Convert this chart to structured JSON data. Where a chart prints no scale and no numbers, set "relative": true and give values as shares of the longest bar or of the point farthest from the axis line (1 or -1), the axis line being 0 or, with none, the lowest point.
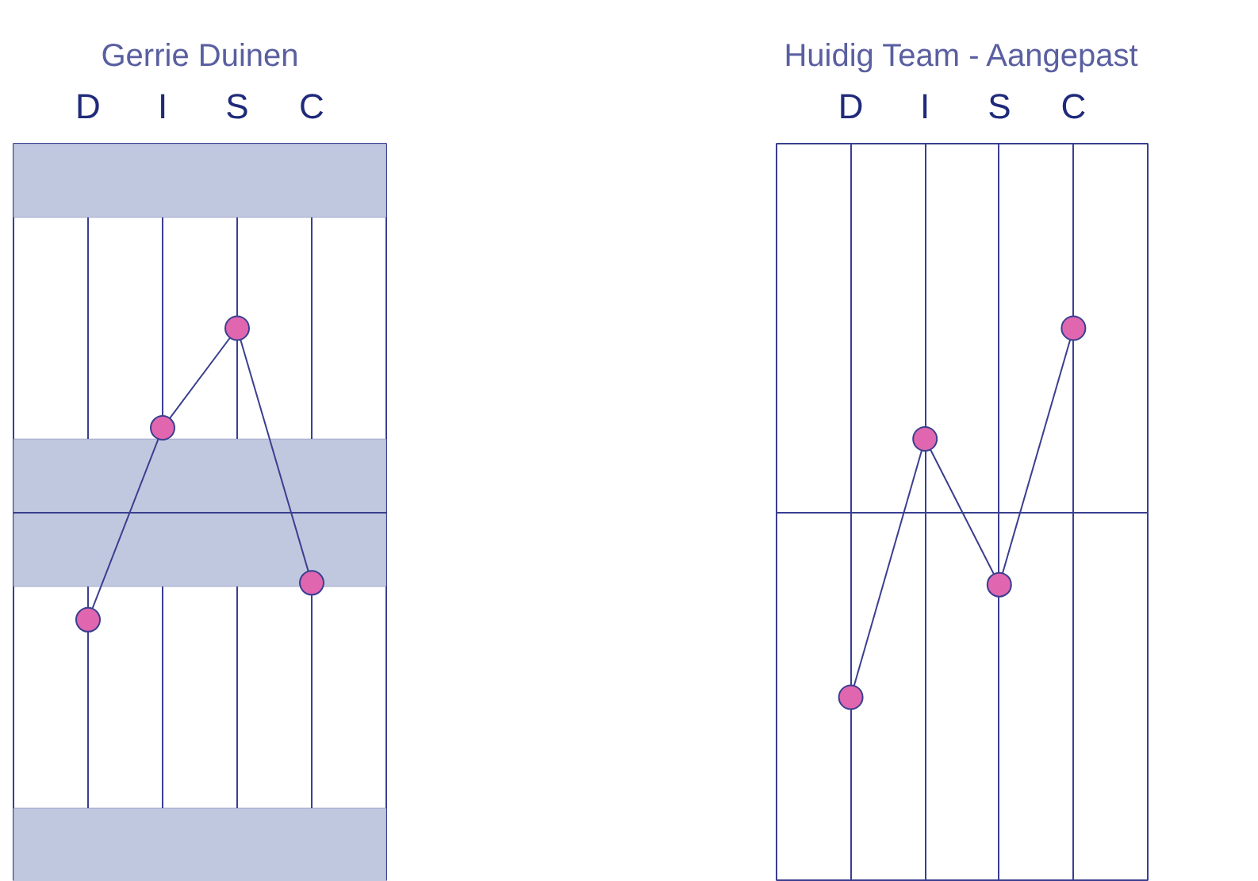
{
  "chart_data": [
    {
      "type": "line",
      "title": "Gerrie Duinen",
      "categories": [
        "D",
        "I",
        "S",
        "C"
      ],
      "relative": true,
      "marker": "circle",
      "grid": "x",
      "series": [
        {
          "color": "#e066b0",
          "values": [
            -0.58,
            0.46,
            1,
            -0.38
          ]
        }
      ],
      "bands": [
        {
          "axis": "y",
          "from": 1.6,
          "to": 2.0,
          "color": "#c0c8e0"
        },
        {
          "axis": "y",
          "from": 0,
          "to": 0.4,
          "color": "#c0c8e0"
        },
        {
          "axis": "y",
          "from": -0.4,
          "to": 0,
          "color": "#c0c8e0"
        },
        {
          "axis": "y",
          "from": -2.0,
          "to": -1.6,
          "color": "#c0c8e0"
        }
      ],
      "ref_lines": [
        {
          "axis": "y",
          "value": 0
        }
      ]
    },
    {
      "type": "line",
      "title": "Huidig Team - Aangepast",
      "categories": [
        "D",
        "I",
        "S",
        "C"
      ],
      "relative": true,
      "marker": "circle",
      "grid": "x",
      "series": [
        {
          "color": "#e066b0",
          "values": [
            -1,
            0.4,
            -0.39,
            1
          ]
        }
      ],
      "ref_lines": [
        {
          "axis": "y",
          "value": 0
        }
      ]
    }
  ]
}
